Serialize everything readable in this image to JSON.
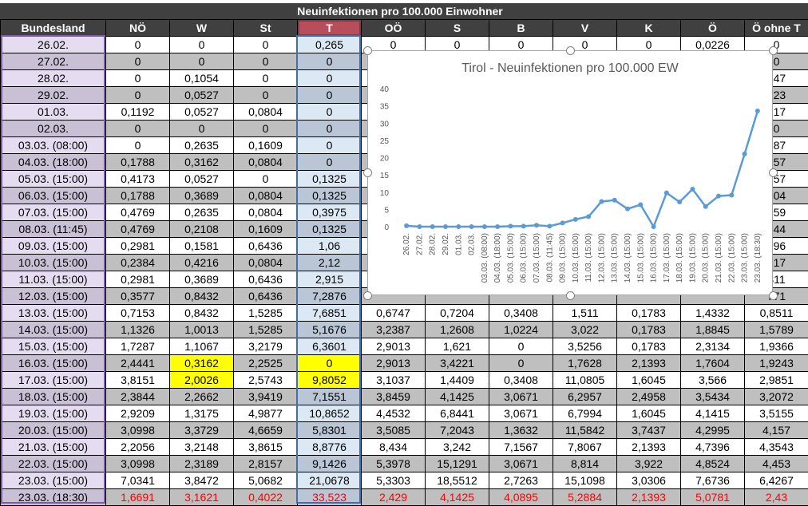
{
  "sheet": {
    "title": "Neuinfektionen pro 100.000 Einwohner",
    "columns": [
      "Bundesland",
      "NÖ",
      "W",
      "St",
      "T",
      "OÖ",
      "S",
      "B",
      "V",
      "K",
      "Ö",
      "Ö ohne T"
    ],
    "rows": [
      [
        "26.02.",
        "0",
        "0",
        "0",
        "0,265",
        "0",
        "0",
        "0",
        "0",
        "0",
        "0,0226",
        "0"
      ],
      [
        "27.02.",
        "0",
        "0",
        "0",
        "0",
        "",
        "",
        "",
        "",
        "",
        "",
        "0"
      ],
      [
        "28.02.",
        "0",
        "0,1054",
        "0",
        "0",
        "",
        "",
        "",
        "",
        "",
        "",
        "247"
      ],
      [
        "29.02.",
        "0",
        "0,0527",
        "0",
        "0",
        "",
        "",
        "",
        "",
        "",
        "",
        "123"
      ],
      [
        "01.03.",
        "0,1192",
        "0,0527",
        "0,0804",
        "0",
        "",
        "",
        "",
        "",
        "",
        "",
        "617"
      ],
      [
        "02.03.",
        "0",
        "0",
        "0",
        "0",
        "",
        "",
        "",
        "",
        "",
        "",
        "0"
      ],
      [
        "03.03. (08:00)",
        "0",
        "0,2635",
        "0,1609",
        "0",
        "",
        "",
        "",
        "",
        "",
        "",
        "987"
      ],
      [
        "04.03. (18:00)",
        "0,1788",
        "0,3162",
        "0,0804",
        "0",
        "",
        "",
        "",
        "",
        "",
        "",
        "357"
      ],
      [
        "05.03. (15:00)",
        "0,4173",
        "0,0527",
        "0",
        "0,1325",
        "",
        "",
        "",
        "",
        "",
        "",
        "357"
      ],
      [
        "06.03. (15:00)",
        "0,1788",
        "0,3689",
        "0,0804",
        "0,1325",
        "",
        "",
        "",
        "",
        "",
        "",
        "604"
      ],
      [
        "07.03. (15:00)",
        "0,4769",
        "0,2635",
        "0,0804",
        "0,3975",
        "",
        "",
        "",
        "",
        "",
        "",
        "259"
      ],
      [
        "08.03. (11:45)",
        "0,4769",
        "0,2108",
        "0,1609",
        "0,1325",
        "",
        "",
        "",
        "",
        "",
        "",
        "344"
      ],
      [
        "09.03. (15:00)",
        "0,2981",
        "0,1581",
        "0,6436",
        "1,06",
        "",
        "",
        "",
        "",
        "",
        "",
        "296"
      ],
      [
        "10.03. (15:00)",
        "0,2384",
        "0,4216",
        "0,0804",
        "2,12",
        "",
        "",
        "",
        "",
        "",
        "",
        "317"
      ],
      [
        "11.03. (15:00)",
        "0,2981",
        "0,3689",
        "0,6436",
        "2,915",
        "",
        "",
        "",
        "",
        "",
        "",
        "811"
      ],
      [
        "12.03. (15:00)",
        "0,3577",
        "0,8432",
        "0,6436",
        "7,2876",
        "",
        "",
        "",
        "",
        "",
        "",
        "771"
      ],
      [
        "13.03. (15:00)",
        "0,7153",
        "0,8432",
        "1,5285",
        "7,6851",
        "0,6747",
        "0,7204",
        "0,3408",
        "1,511",
        "0,1783",
        "1,4332",
        "0,8511"
      ],
      [
        "14.03. (15:00)",
        "1,1326",
        "1,0013",
        "1,5285",
        "5,1676",
        "3,2387",
        "1,2608",
        "1,0224",
        "3,022",
        "0,1783",
        "1,8845",
        "1,5789"
      ],
      [
        "15.03. (15:00)",
        "1,7287",
        "1,1067",
        "3,2179",
        "6,3601",
        "2,9013",
        "1,621",
        "0",
        "3,5256",
        "0,1783",
        "2,3134",
        "1,9366"
      ],
      [
        "16.03. (15:00)",
        "2,4441",
        "0,3162",
        "2,2525",
        "0",
        "2,9013",
        "3,4221",
        "0",
        "1,7628",
        "2,1393",
        "1,7604",
        "1,9243"
      ],
      [
        "17.03. (15:00)",
        "3,8151",
        "2,0026",
        "2,5743",
        "9,8052",
        "3,1037",
        "1,4409",
        "0,3408",
        "11,0805",
        "1,6045",
        "3,566",
        "2,9851"
      ],
      [
        "18.03. (15:00)",
        "2,3844",
        "2,2662",
        "3,9419",
        "7,1551",
        "3,8459",
        "4,1425",
        "3,0671",
        "6,2957",
        "2,4958",
        "3,5434",
        "3,2072"
      ],
      [
        "19.03. (15:00)",
        "2,9209",
        "1,3175",
        "4,9877",
        "10,8652",
        "4,4532",
        "6,8441",
        "3,0671",
        "6,7994",
        "1,6045",
        "4,1415",
        "3,5155"
      ],
      [
        "20.03. (15:00)",
        "3,0998",
        "3,3729",
        "4,6659",
        "5,8301",
        "3,5085",
        "7,2043",
        "1,3632",
        "11,5842",
        "3,7437",
        "4,2995",
        "4,157"
      ],
      [
        "21.03. (15:00)",
        "2,2056",
        "3,2148",
        "3,8615",
        "8,8776",
        "8,434",
        "3,242",
        "7,1567",
        "7,8067",
        "2,1393",
        "4,7396",
        "4,3543"
      ],
      [
        "22.03. (15:00)",
        "3,0998",
        "2,3189",
        "2,8157",
        "9,1426",
        "5,3978",
        "15,1291",
        "3,0671",
        "8,814",
        "3,922",
        "4,8524",
        "4,453"
      ],
      [
        "23.03. (15:00)",
        "7,0341",
        "3,8472",
        "5,0682",
        "21,0678",
        "5,3303",
        "18,5512",
        "2,7263",
        "15,1098",
        "3,0306",
        "7,6736",
        "6,4267"
      ],
      [
        "23.03. (18:30)",
        "1,6691",
        "3,1621",
        "0,4022",
        "33,523",
        "2,429",
        "4,1425",
        "4,0895",
        "5,2884",
        "2,1393",
        "5,0781",
        "2,43"
      ]
    ],
    "highlight_cells": [
      [
        19,
        2
      ],
      [
        19,
        4
      ],
      [
        20,
        2
      ],
      [
        20,
        4
      ]
    ],
    "colors": {
      "header_bg": "#404040",
      "alt_row": "#bfbfbf",
      "highlight": "#ffff00",
      "last_row_text": "#ff0000",
      "line": "#5b9bd5"
    }
  },
  "chart_data": {
    "type": "line",
    "title": "Tirol - Neuinfektionen pro 100.000 EW",
    "categories": [
      "26.02.",
      "27.02.",
      "28.02.",
      "29.02.",
      "01.03.",
      "02.03.",
      "03.03. (08:00)",
      "04.03. (18:00)",
      "05.03. (15:00)",
      "06.03. (15:00)",
      "07.03. (15:00)",
      "08.03. (11:45)",
      "09.03. (15:00)",
      "10.03. (15:00)",
      "11.03. (15:00)",
      "12.03. (15:00)",
      "13.03. (15:00)",
      "14.03. (15:00)",
      "15.03. (15:00)",
      "16.03. (15:00)",
      "17.03. (15:00)",
      "18.03. (15:00)",
      "19.03. (15:00)",
      "20.03. (15:00)",
      "21.03. (15:00)",
      "22.03. (15:00)",
      "23.03. (15:00)",
      "23.03. (18:30)"
    ],
    "values": [
      0.265,
      0,
      0,
      0,
      0,
      0,
      0,
      0,
      0.1325,
      0.1325,
      0.3975,
      0.1325,
      1.06,
      2.12,
      2.915,
      7.2876,
      7.6851,
      5.1676,
      6.3601,
      0,
      9.8052,
      7.1551,
      10.8652,
      5.8301,
      8.8776,
      9.1426,
      21.0678,
      33.523
    ],
    "ylim": [
      0,
      40
    ],
    "yticks": [
      "0",
      "5",
      "10",
      "15",
      "20",
      "25",
      "30",
      "35",
      "40"
    ],
    "grid": false,
    "legend": "none",
    "color": "#5b9bd5"
  }
}
